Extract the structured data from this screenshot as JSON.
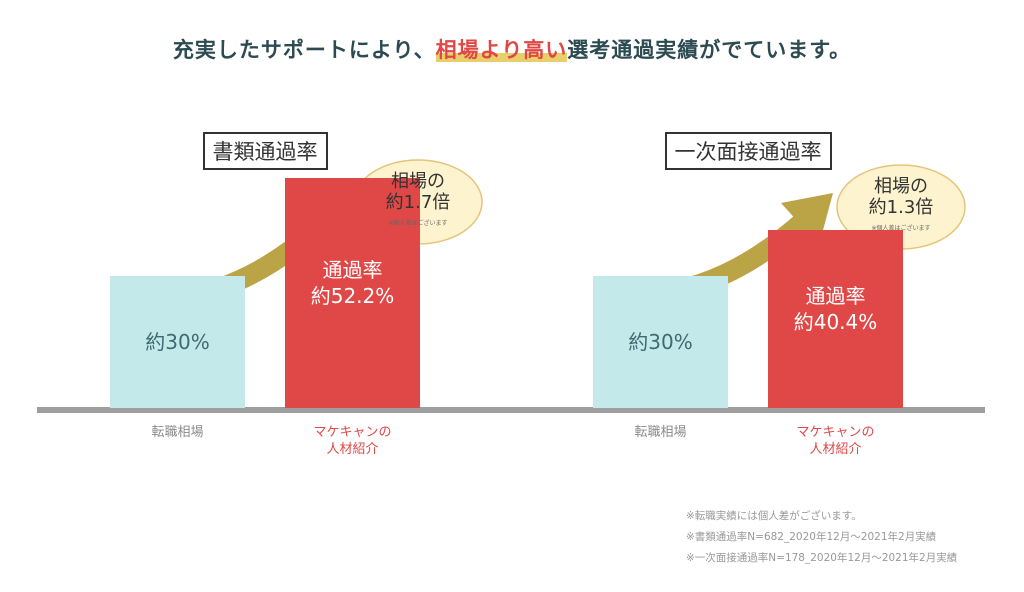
{
  "header": {
    "title_parts": [
      "充実したサポートにより、",
      "相場より高い",
      "選考通過実績がでています。"
    ]
  },
  "chart_data": [
    {
      "type": "bar",
      "title": "書類通過率",
      "categories": [
        "転職相場",
        "マケキャンの\n人材紹介"
      ],
      "values": [
        30,
        52.2
      ],
      "value_labels": [
        "約30%",
        "通過率\n約52.2%"
      ],
      "colors": [
        "#c4e9ea",
        "#e04848"
      ],
      "label_colors": [
        "#8a8a8a",
        "#e04848"
      ],
      "annotation": {
        "text": "相場の\n約1.7倍",
        "note": "※個人差はございます"
      }
    },
    {
      "type": "bar",
      "title": "一次面接通過率",
      "categories": [
        "転職相場",
        "マケキャンの\n人材紹介"
      ],
      "values": [
        30,
        40.4
      ],
      "value_labels": [
        "約30%",
        "通過率\n約40.4%"
      ],
      "colors": [
        "#c4e9ea",
        "#e04848"
      ],
      "label_colors": [
        "#8a8a8a",
        "#e04848"
      ],
      "annotation": {
        "text": "相場の\n約1.3倍",
        "note": "※個人差はございます"
      }
    }
  ],
  "footnotes": [
    "※転職実績には個人差がございます。",
    "※書類通過率N=682_2020年12月〜2021年2月実績",
    "※一次面接通過率N=178_2020年12月〜2021年2月実績"
  ]
}
